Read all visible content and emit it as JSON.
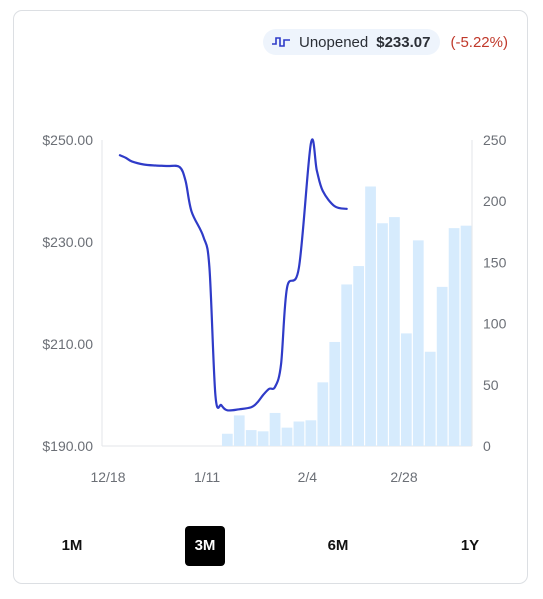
{
  "legend": {
    "series_label": "Unopened",
    "price": "$233.07",
    "change": "(-5.22%)",
    "line_color": "#2f3bc8",
    "icon": "step-line-icon"
  },
  "ranges": [
    {
      "label": "1M",
      "active": false
    },
    {
      "label": "3M",
      "active": true
    },
    {
      "label": "6M",
      "active": false
    },
    {
      "label": "1Y",
      "active": false
    }
  ],
  "chart_data": {
    "type": "line",
    "x_tick_labels": [
      "12/18",
      "1/11",
      "2/4",
      "2/28"
    ],
    "y_left_ticks": [
      "$250.00",
      "$230.00",
      "$210.00",
      "$190.00"
    ],
    "y_left_values": [
      250,
      230,
      210,
      190
    ],
    "y_right_ticks": [
      "250",
      "200",
      "150",
      "100",
      "50",
      "0"
    ],
    "y_right_values": [
      250,
      200,
      150,
      100,
      50,
      0
    ],
    "ylim_left": [
      190,
      250
    ],
    "ylim_right": [
      0,
      250
    ],
    "grid": false,
    "series": [
      {
        "kind": "line",
        "axis": "left",
        "color": "#2f3bc8",
        "points": [
          [
            1,
            247.0
          ],
          [
            1.5,
            246.5
          ],
          [
            2,
            245.8
          ],
          [
            3,
            245.2
          ],
          [
            4,
            245.0
          ],
          [
            5,
            244.9
          ],
          [
            6,
            244.7
          ],
          [
            6.5,
            242.0
          ],
          [
            7,
            236.0
          ],
          [
            8,
            231.0
          ],
          [
            8.5,
            225.0
          ],
          [
            9,
            200.0
          ],
          [
            9.5,
            198.0
          ],
          [
            10,
            197.0
          ],
          [
            11,
            197.2
          ],
          [
            12,
            197.6
          ],
          [
            12.5,
            198.5
          ],
          [
            13,
            200.0
          ],
          [
            13.5,
            201.2
          ],
          [
            14,
            201.6
          ],
          [
            14.5,
            206.0
          ],
          [
            15,
            221.0
          ],
          [
            16,
            225.0
          ],
          [
            17,
            249.3
          ],
          [
            17.5,
            244.0
          ],
          [
            18,
            240.0
          ],
          [
            19,
            237.0
          ],
          [
            20,
            236.5
          ]
        ]
      },
      {
        "kind": "bar",
        "axis": "right",
        "color": "#d6ebfd",
        "values": [
          0,
          0,
          0,
          0,
          0,
          0,
          0,
          0,
          0,
          0,
          10,
          25,
          13,
          12,
          27,
          15,
          20,
          21,
          52,
          85,
          132,
          147,
          212,
          182,
          187,
          92,
          168,
          77,
          130,
          178,
          180
        ]
      }
    ]
  }
}
